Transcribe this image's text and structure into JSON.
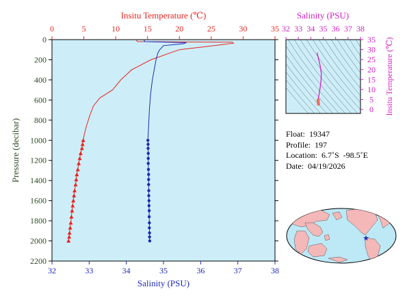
{
  "chart_data": [
    {
      "type": "line",
      "temperature_axis": {
        "label": "Insitu Temperature (℃)",
        "range": [
          0,
          35
        ],
        "ticks": [
          0,
          5,
          10,
          15,
          20,
          25,
          30,
          35
        ],
        "color": "#e8231e"
      },
      "salinity_axis": {
        "label": "Salinity (PSU)",
        "range": [
          32,
          38
        ],
        "ticks": [
          32,
          33,
          34,
          35,
          36,
          37,
          38
        ],
        "color": "#1d28b6"
      },
      "pressure_axis": {
        "label": "Pressure (decibar)",
        "range": [
          0,
          2200
        ],
        "inverted": true,
        "ticks": [
          0,
          200,
          400,
          600,
          800,
          1000,
          1200,
          1400,
          1600,
          1800,
          2000,
          2200
        ],
        "color": "#2c4a24"
      },
      "series": [
        {
          "variable": "temperature",
          "color": "#e8231e",
          "marker": "triangle",
          "line": [
            [
              13.2,
              0
            ],
            [
              13.4,
              20
            ],
            [
              28.3,
              25
            ],
            [
              28.5,
              35
            ],
            [
              26,
              55
            ],
            [
              20,
              100
            ],
            [
              15.5,
              200
            ],
            [
              12.5,
              300
            ],
            [
              10.8,
              400
            ],
            [
              9.5,
              500
            ],
            [
              7.5,
              580
            ],
            [
              6.5,
              660
            ],
            [
              5.9,
              760
            ],
            [
              5.4,
              860
            ],
            [
              5.0,
              960
            ],
            [
              4.9,
              1000
            ],
            [
              4.8,
              1040
            ],
            [
              4.7,
              1080
            ],
            [
              4.5,
              1130
            ],
            [
              4.35,
              1180
            ],
            [
              4.2,
              1230
            ],
            [
              4.05,
              1290
            ],
            [
              3.9,
              1340
            ],
            [
              3.8,
              1390
            ],
            [
              3.7,
              1440
            ],
            [
              3.55,
              1500
            ],
            [
              3.45,
              1550
            ],
            [
              3.35,
              1600
            ],
            [
              3.25,
              1650
            ],
            [
              3.15,
              1700
            ],
            [
              3.05,
              1760
            ],
            [
              2.95,
              1820
            ],
            [
              2.85,
              1870
            ],
            [
              2.75,
              1920
            ],
            [
              2.7,
              1960
            ],
            [
              2.6,
              2000
            ]
          ],
          "points": [
            [
              4.9,
              1000
            ],
            [
              4.8,
              1040
            ],
            [
              4.7,
              1080
            ],
            [
              4.5,
              1130
            ],
            [
              4.35,
              1180
            ],
            [
              4.2,
              1230
            ],
            [
              4.05,
              1290
            ],
            [
              3.9,
              1340
            ],
            [
              3.8,
              1390
            ],
            [
              3.7,
              1440
            ],
            [
              3.55,
              1500
            ],
            [
              3.45,
              1550
            ],
            [
              3.35,
              1600
            ],
            [
              3.25,
              1650
            ],
            [
              3.15,
              1700
            ],
            [
              3.05,
              1760
            ],
            [
              2.95,
              1820
            ],
            [
              2.85,
              1870
            ],
            [
              2.75,
              1920
            ],
            [
              2.7,
              1960
            ],
            [
              2.6,
              2000
            ]
          ]
        },
        {
          "variable": "salinity",
          "color": "#1d28b6",
          "marker": "circle",
          "line": [
            [
              34.47,
              0
            ],
            [
              34.5,
              20
            ],
            [
              35.6,
              30
            ],
            [
              35.55,
              40
            ],
            [
              35.0,
              60
            ],
            [
              34.95,
              80
            ],
            [
              34.9,
              100
            ],
            [
              34.85,
              130
            ],
            [
              34.8,
              200
            ],
            [
              34.75,
              300
            ],
            [
              34.7,
              400
            ],
            [
              34.65,
              550
            ],
            [
              34.62,
              700
            ],
            [
              34.6,
              850
            ],
            [
              34.58,
              1000
            ],
            [
              34.585,
              1040
            ],
            [
              34.585,
              1080
            ],
            [
              34.59,
              1130
            ],
            [
              34.59,
              1180
            ],
            [
              34.59,
              1230
            ],
            [
              34.595,
              1290
            ],
            [
              34.6,
              1340
            ],
            [
              34.6,
              1390
            ],
            [
              34.6,
              1440
            ],
            [
              34.605,
              1500
            ],
            [
              34.605,
              1550
            ],
            [
              34.61,
              1600
            ],
            [
              34.61,
              1650
            ],
            [
              34.615,
              1700
            ],
            [
              34.615,
              1760
            ],
            [
              34.62,
              1820
            ],
            [
              34.62,
              1870
            ],
            [
              34.625,
              1920
            ],
            [
              34.625,
              1960
            ],
            [
              34.63,
              2000
            ]
          ],
          "points": [
            [
              34.58,
              1000
            ],
            [
              34.585,
              1040
            ],
            [
              34.585,
              1080
            ],
            [
              34.59,
              1130
            ],
            [
              34.59,
              1180
            ],
            [
              34.59,
              1230
            ],
            [
              34.595,
              1290
            ],
            [
              34.6,
              1340
            ],
            [
              34.6,
              1390
            ],
            [
              34.6,
              1440
            ],
            [
              34.605,
              1500
            ],
            [
              34.605,
              1550
            ],
            [
              34.61,
              1600
            ],
            [
              34.61,
              1650
            ],
            [
              34.615,
              1700
            ],
            [
              34.615,
              1760
            ],
            [
              34.62,
              1820
            ],
            [
              34.62,
              1870
            ],
            [
              34.625,
              1920
            ],
            [
              34.625,
              1960
            ],
            [
              34.63,
              2000
            ]
          ]
        }
      ]
    },
    {
      "type": "scatter",
      "x_axis": {
        "label": "Salinity (PSU)",
        "range": [
          32,
          38
        ],
        "ticks": [
          32,
          33,
          34,
          35,
          36,
          37,
          38
        ],
        "color": "#d21fc3"
      },
      "y_axis": {
        "label": "Insitu Temperature (℃)",
        "range": [
          -2,
          35
        ],
        "ticks": [
          0,
          5,
          10,
          15,
          20,
          25,
          30,
          35
        ],
        "color": "#d21fc3"
      },
      "line_color": "#d21fc3",
      "marker_color": "#f07060",
      "line": [
        [
          34.5,
          28.5
        ],
        [
          34.6,
          26
        ],
        [
          34.75,
          22
        ],
        [
          34.85,
          18
        ],
        [
          34.82,
          14
        ],
        [
          34.75,
          11
        ],
        [
          34.68,
          8
        ],
        [
          34.62,
          6
        ],
        [
          34.6,
          4.9
        ]
      ],
      "points": [
        [
          34.6,
          4.9
        ],
        [
          34.6,
          4.5
        ],
        [
          34.59,
          4.1
        ],
        [
          34.6,
          3.8
        ],
        [
          34.61,
          3.4
        ],
        [
          34.61,
          3.1
        ],
        [
          34.62,
          2.8
        ],
        [
          34.62,
          2.6
        ]
      ]
    }
  ],
  "float_info": {
    "float": "Float:  19347",
    "profile": "Profile:  197",
    "location": "Location:  6.7˚S  -98.5˚E",
    "date": "Date:  04/19/2026"
  },
  "map": {
    "land_color": "#f4b8b8",
    "ocean_color": "#bde8f5",
    "marker_color": "#1d28b6",
    "marker_lon": -98.5,
    "marker_lat": -6.7
  }
}
